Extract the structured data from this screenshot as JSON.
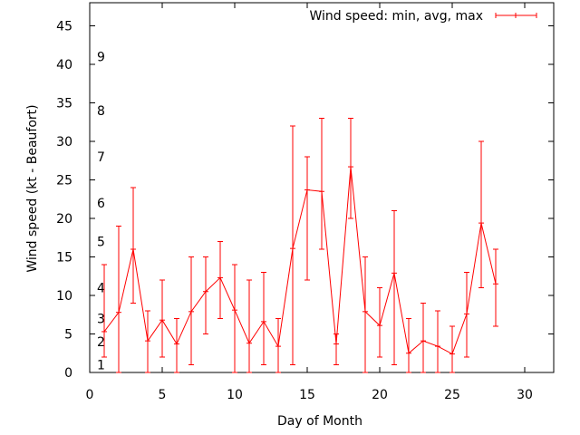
{
  "chart_data": {
    "type": "line",
    "title": "",
    "xlabel": "Day of Month",
    "ylabel": "Wind speed (kt - Beaufort)",
    "xlim": [
      0,
      32
    ],
    "ylim": [
      0,
      48
    ],
    "x_ticks": [
      0,
      5,
      10,
      15,
      20,
      25,
      30
    ],
    "y_ticks": [
      0,
      5,
      10,
      15,
      20,
      25,
      30,
      35,
      40,
      45
    ],
    "grid": false,
    "legend_position": "top-right",
    "series_color": "#ff0000",
    "series": [
      {
        "name": "Wind speed: min, avg, max",
        "x": [
          1,
          2,
          3,
          4,
          5,
          6,
          7,
          8,
          9,
          10,
          11,
          12,
          13,
          14,
          15,
          16,
          17,
          18,
          19,
          20,
          21,
          22,
          23,
          24,
          25,
          26,
          27,
          28
        ],
        "avg": [
          5.3,
          7.8,
          16.0,
          4.1,
          6.8,
          3.7,
          7.9,
          10.5,
          12.3,
          8.1,
          3.8,
          6.6,
          3.4,
          16.1,
          23.7,
          23.5,
          3.7,
          26.7,
          7.9,
          6.1,
          12.9,
          2.5,
          4.1,
          3.4,
          2.4,
          7.6,
          19.4,
          11.5
        ],
        "min": [
          2,
          0,
          9,
          0,
          2,
          0,
          1,
          5,
          7,
          0,
          0,
          1,
          0,
          1,
          12,
          16,
          1,
          20,
          0,
          2,
          1,
          0,
          0,
          0,
          0,
          2,
          11,
          6
        ],
        "max": [
          14,
          19,
          24,
          8,
          12,
          7,
          15,
          15,
          17,
          14,
          12,
          13,
          7,
          32,
          28,
          33,
          5,
          33,
          15,
          11,
          21,
          7,
          9,
          8,
          6,
          13,
          30,
          16
        ]
      }
    ],
    "beaufort_labels": [
      {
        "label": "1",
        "value": 1
      },
      {
        "label": "2",
        "value": 4
      },
      {
        "label": "3",
        "value": 7
      },
      {
        "label": "4",
        "value": 11
      },
      {
        "label": "5",
        "value": 17
      },
      {
        "label": "6",
        "value": 22
      },
      {
        "label": "7",
        "value": 28
      },
      {
        "label": "8",
        "value": 34
      },
      {
        "label": "9",
        "value": 41
      }
    ]
  }
}
